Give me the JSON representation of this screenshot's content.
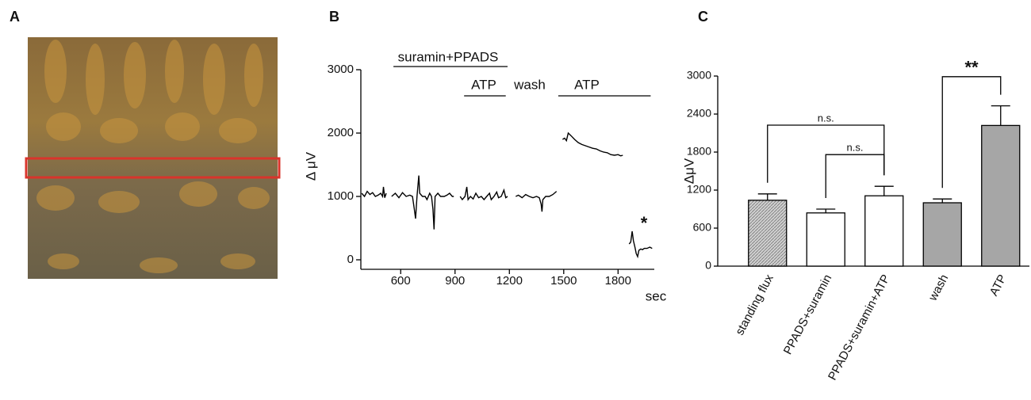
{
  "panel_labels": [
    "A",
    "B",
    "C"
  ],
  "chart_data": [
    {
      "type": "line",
      "xlabel": "sec",
      "ylabel": "Δ μV",
      "color": "#000000",
      "xlim": [
        380,
        2000
      ],
      "xticks": [
        600,
        900,
        1200,
        1500,
        1800
      ],
      "ylim": [
        -150,
        3000
      ],
      "yticks": [
        0,
        1000,
        2000,
        3000
      ],
      "x": [
        385,
        400,
        415,
        430,
        445,
        460,
        475,
        490,
        500,
        505,
        512,
        520,
        540,
        550,
        570,
        590,
        610,
        630,
        650,
        665,
        675,
        682,
        690,
        700,
        705,
        720,
        735,
        745,
        760,
        770,
        778,
        784,
        790,
        805,
        820,
        840,
        855,
        870,
        885,
        893,
        910,
        928,
        940,
        955,
        965,
        972,
        985,
        1000,
        1015,
        1030,
        1045,
        1060,
        1075,
        1090,
        1100,
        1115,
        1130,
        1140,
        1155,
        1170,
        1180,
        1190,
        1195,
        1235,
        1250,
        1270,
        1290,
        1310,
        1330,
        1350,
        1365,
        1375,
        1380,
        1385,
        1400,
        1420,
        1440,
        1460,
        1470,
        1494,
        1505,
        1515,
        1525,
        1540,
        1560,
        1580,
        1600,
        1620,
        1640,
        1660,
        1680,
        1700,
        1720,
        1740,
        1760,
        1780,
        1800,
        1815,
        1826,
        1850,
        1861,
        1870,
        1878,
        1885,
        1893,
        1900,
        1908,
        1915,
        1925,
        1935,
        1945,
        1960,
        1975,
        1988
      ],
      "values": [
        1050,
        1000,
        1080,
        1030,
        1060,
        1000,
        1020,
        1050,
        1000,
        1150,
        980,
        1050,
        null,
        1000,
        1050,
        980,
        1060,
        1000,
        1020,
        1000,
        800,
        650,
        1000,
        1330,
        1050,
        1000,
        1000,
        950,
        1050,
        1000,
        800,
        480,
        1000,
        1050,
        1000,
        1000,
        1020,
        1050,
        1000,
        1000,
        null,
        1000,
        950,
        1000,
        1150,
        950,
        1000,
        960,
        1050,
        980,
        1000,
        950,
        1000,
        1050,
        950,
        1000,
        1070,
        980,
        1000,
        1100,
        980,
        1000,
        null,
        1000,
        1020,
        980,
        1030,
        1000,
        980,
        1000,
        980,
        880,
        760,
        950,
        1000,
        1000,
        1030,
        1080,
        null,
        1900,
        1920,
        1880,
        2000,
        1960,
        1900,
        1850,
        1820,
        1800,
        1780,
        1760,
        1750,
        1720,
        1700,
        1690,
        1660,
        1650,
        1660,
        1640,
        1650,
        null,
        250,
        280,
        450,
        300,
        200,
        100,
        50,
        150,
        170,
        160,
        180,
        180,
        200,
        180
      ],
      "annotations": [
        {
          "text": "suramin+PPADS",
          "x": [
            560,
            1190
          ]
        },
        {
          "text": "ATP",
          "x": [
            950,
            1180
          ]
        },
        {
          "text": "wash"
        },
        {
          "text": "ATP",
          "x": [
            1470,
            1980
          ]
        },
        {
          "text": "*"
        }
      ]
    },
    {
      "type": "bar",
      "ylabel": "ΔμV",
      "categories": [
        "standing flux",
        "PPADS+suramin",
        "PPADS+suramin+ATP",
        "wash",
        "ATP"
      ],
      "values": [
        1040,
        840,
        1110,
        1000,
        2220
      ],
      "errors": [
        100,
        60,
        150,
        60,
        310
      ],
      "colors": [
        "#bdbdbd",
        "#ffffff",
        "#ffffff",
        "#a6a6a6",
        "#a6a6a6"
      ],
      "hatch": [
        true,
        false,
        false,
        false,
        false
      ],
      "ylim": [
        0,
        3000
      ],
      "yticks": [
        0,
        600,
        1200,
        1800,
        2400,
        3000
      ],
      "brackets": [
        {
          "from": 0,
          "to": 2,
          "y": 2225,
          "label": "n.s."
        },
        {
          "from": 1,
          "to": 2,
          "y": 1760,
          "label": "n.s."
        },
        {
          "from": 3,
          "to": 4,
          "y": 2990,
          "label": "**"
        }
      ]
    }
  ]
}
